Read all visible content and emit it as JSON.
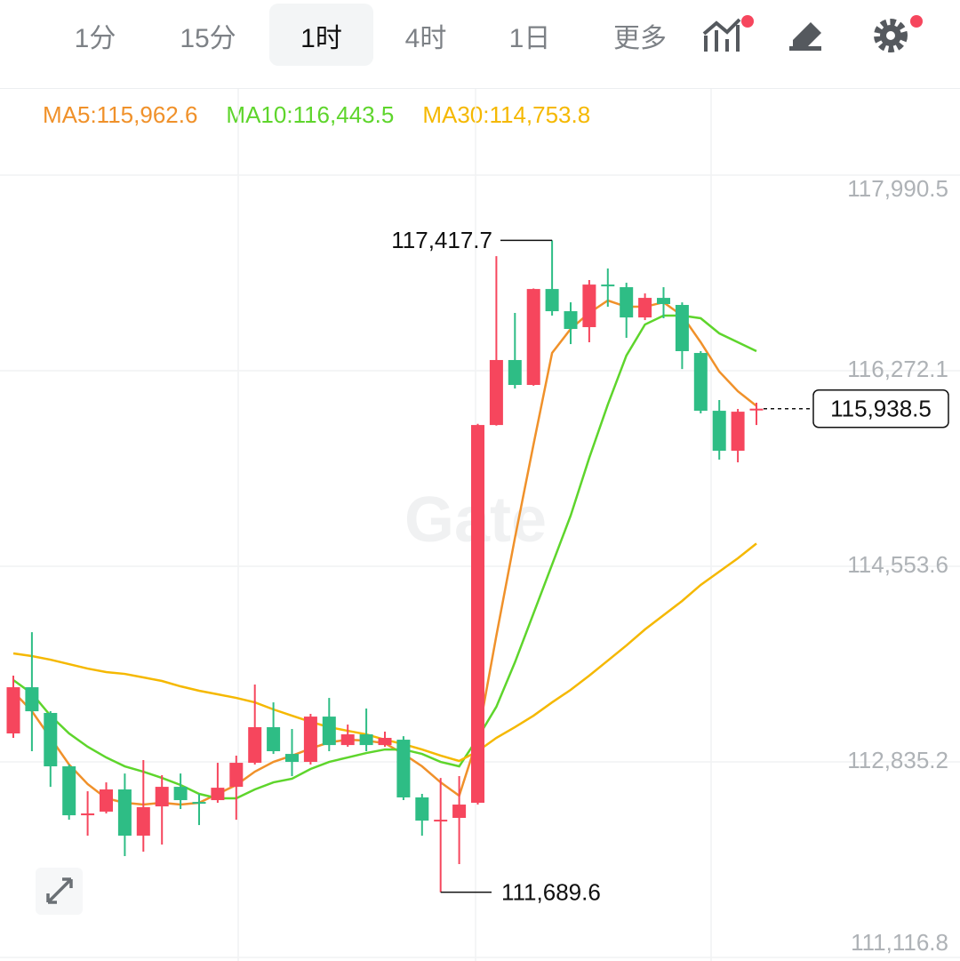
{
  "toolbar": {
    "tabs": [
      "1分",
      "15分",
      "1时",
      "4时",
      "1日",
      "更多"
    ],
    "active": "1时"
  },
  "chart_data": {
    "type": "candlestick",
    "up_color": "#f6465d",
    "down_color": "#2ebd85",
    "open": [
      113085,
      113491,
      113265,
      112796,
      112366,
      112398,
      112593,
      112187,
      112444,
      112616,
      112483,
      112499,
      112616,
      112827,
      113140,
      112905,
      112835,
      113233,
      112983,
      113077,
      112983,
      113030,
      112523,
      112312,
      112343,
      112476,
      115795,
      116366,
      116147,
      116990,
      116795,
      116655,
      117029,
      117006,
      116740,
      116912,
      116850,
      116428,
      115920,
      115569,
      115930
    ],
    "high": [
      113593,
      113975,
      113280,
      112812,
      112577,
      112655,
      112733,
      112851,
      112718,
      112733,
      112554,
      112827,
      112890,
      113515,
      113358,
      113124,
      113257,
      113397,
      113163,
      113304,
      113101,
      113061,
      112554,
      112694,
      112710,
      115805,
      117279,
      116780,
      116995,
      117417.7,
      116873,
      117069,
      117170,
      117045,
      116951,
      117006,
      116873,
      116444,
      116014,
      115936,
      115991
    ],
    "low": [
      113046,
      112929,
      112616,
      112327,
      112187,
      112382,
      112007,
      112046,
      112109,
      112421,
      112280,
      112476,
      112327,
      112812,
      112905,
      112710,
      112812,
      112929,
      112968,
      112929,
      112968,
      112499,
      112187,
      111689.6,
      111937,
      112460,
      115790,
      116116,
      116140,
      116756,
      116506,
      116522,
      116834,
      116561,
      116717,
      116733,
      116287,
      115897,
      115491,
      115467,
      115795
    ],
    "close": [
      113491,
      113280,
      112796,
      112366,
      112382,
      112593,
      112187,
      112437,
      112616,
      112499,
      112468,
      112608,
      112827,
      113140,
      112929,
      112835,
      113233,
      112983,
      113077,
      112983,
      113046,
      112523,
      112319,
      112327,
      112460,
      115795,
      116366,
      116147,
      116990,
      116795,
      116639,
      117029,
      117014,
      116740,
      116912,
      116858,
      116444,
      115920,
      115569,
      115912,
      115938.5
    ],
    "ma": [
      {
        "name": "MA5:115,962.6",
        "color": "#f0912a",
        "values": [
          113452,
          113280,
          113046,
          112812,
          112640,
          112515,
          112476,
          112460,
          112476,
          112460,
          112476,
          112554,
          112632,
          112749,
          112835,
          112890,
          112952,
          113007,
          113030,
          113022,
          112999,
          112905,
          112796,
          112655,
          112538,
          113046,
          113944,
          114803,
          115624,
          116428,
          116639,
          116780,
          116889,
          116834,
          116834,
          116873,
          116756,
          116522,
          116264,
          116092,
          115962.6
        ]
      },
      {
        "name": "MA10:116,443.5",
        "color": "#5ed52c",
        "values": [
          113554,
          113436,
          113241,
          113085,
          112968,
          112874,
          112796,
          112749,
          112694,
          112632,
          112554,
          112515,
          112515,
          112593,
          112655,
          112687,
          112773,
          112835,
          112874,
          112913,
          112944,
          112944,
          112905,
          112835,
          112796,
          113046,
          113319,
          113710,
          114139,
          114569,
          114999,
          115506,
          115975,
          116405,
          116678,
          116756,
          116756,
          116733,
          116600,
          116522,
          116443.5
        ]
      },
      {
        "name": "MA30:114,753.8",
        "color": "#f5b800",
        "values": [
          113788,
          113765,
          113733,
          113694,
          113655,
          113624,
          113608,
          113577,
          113546,
          113499,
          113460,
          113429,
          113397,
          113358,
          113296,
          113241,
          113187,
          113140,
          113108,
          113077,
          113030,
          112991,
          112944,
          112890,
          112843,
          112929,
          113046,
          113140,
          113241,
          113358,
          113468,
          113593,
          113725,
          113858,
          113999,
          114124,
          114249,
          114390,
          114507,
          114624,
          114753.8
        ]
      }
    ],
    "ylim": [
      111116.8,
      117990.5
    ],
    "yticks": [
      {
        "value": 117990.5,
        "label": "117,990.5"
      },
      {
        "value": 116272.1,
        "label": "116,272.1"
      },
      {
        "value": 114553.6,
        "label": "114,553.6"
      },
      {
        "value": 112835.2,
        "label": "112,835.2"
      },
      {
        "value": 111116.8,
        "label": "111,116.8"
      }
    ],
    "grid": true,
    "high_label": "117,417.7",
    "low_label": "111,689.6",
    "last_price": {
      "value": 115938.5,
      "label": "115,938.5"
    },
    "watermark": "Gate"
  }
}
